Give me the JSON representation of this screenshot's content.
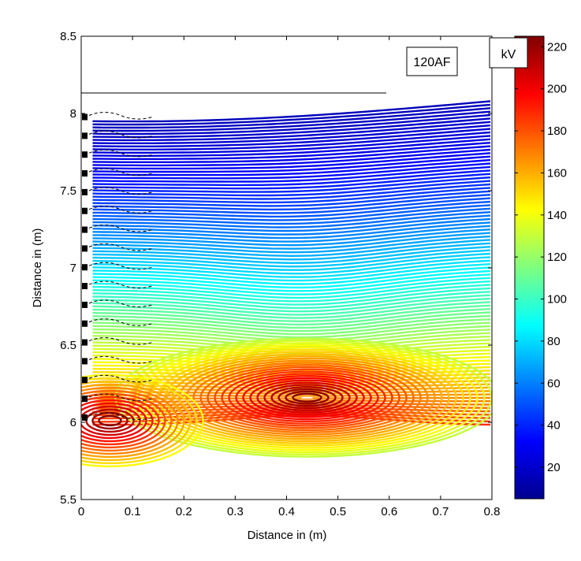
{
  "chart_data": {
    "type": "contour",
    "title": "",
    "xlabel": "Distance in (m)",
    "ylabel": "Distance in (m)",
    "xlim": [
      0,
      0.8
    ],
    "ylim": [
      5.5,
      8.5
    ],
    "x_ticks": [
      "0",
      "0.1",
      "0.2",
      "0.3",
      "0.4",
      "0.5",
      "0.6",
      "0.7",
      "0.8"
    ],
    "y_ticks": [
      "5.5",
      "6",
      "6.5",
      "7",
      "7.5",
      "8",
      "8.5"
    ],
    "grid": false,
    "field_domain": {
      "x": [
        0.01,
        0.8
      ],
      "y": [
        5.98,
        8.13
      ]
    },
    "peak": {
      "x": 0.44,
      "y": 6.16,
      "value": 225
    },
    "colorbar": {
      "units": "kV",
      "range": [
        5,
        225
      ],
      "ticks": [
        "20",
        "40",
        "60",
        "80",
        "100",
        "120",
        "140",
        "160",
        "180",
        "200",
        "220"
      ],
      "colormap": "jet",
      "colors": [
        "#00008f",
        "#0000ff",
        "#00ffff",
        "#ffff00",
        "#ff0000",
        "#800000"
      ]
    },
    "annotations": [
      {
        "name": "config-label",
        "text": "120AF"
      },
      {
        "name": "units-label",
        "text": "kV"
      }
    ]
  }
}
